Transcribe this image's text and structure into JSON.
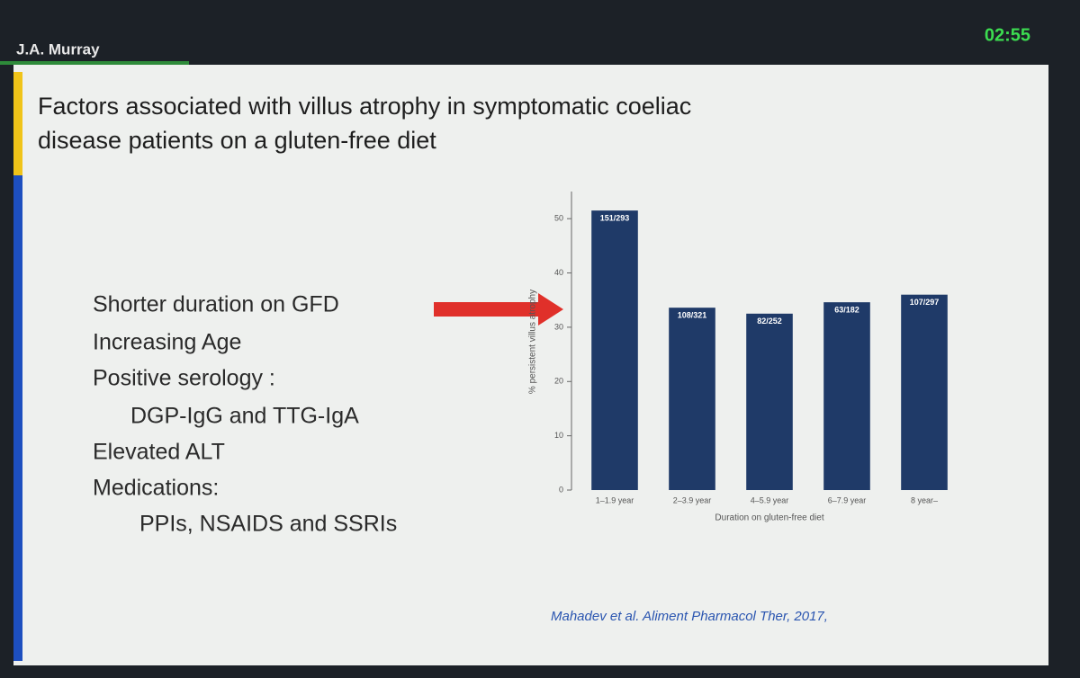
{
  "header": {
    "presenter": "J.A. Murray",
    "timer": "02:55"
  },
  "slide": {
    "title_lines": [
      "Factors associated with villus atrophy in symptomatic coeliac",
      "disease patients on a gluten-free diet"
    ],
    "factors": [
      "Shorter duration on GFD",
      "Increasing Age",
      "Positive serology :",
      "DGP-IgG and TTG-IgA",
      "Elevated ALT",
      "Medications:",
      "PPIs, NSAIDS and SSRIs"
    ],
    "citation": "Mahadev et al.  Aliment Pharmacol Ther, 2017,"
  },
  "chart_data": {
    "type": "bar",
    "categories": [
      "1–1.9 year",
      "2–3.9 year",
      "4–5.9 year",
      "6–7.9 year",
      "8 year–"
    ],
    "values": [
      51.5,
      33.6,
      32.5,
      34.6,
      36.0
    ],
    "value_labels": [
      "151/293",
      "108/321",
      "82/252",
      "63/182",
      "107/297"
    ],
    "color": "#1f3a68",
    "ylim": [
      0,
      55
    ],
    "yticks": [
      0,
      10,
      20,
      30,
      40,
      50
    ],
    "ylabel": "% persistent villus atrophy",
    "xlabel": "Duration on gluten-free diet"
  }
}
